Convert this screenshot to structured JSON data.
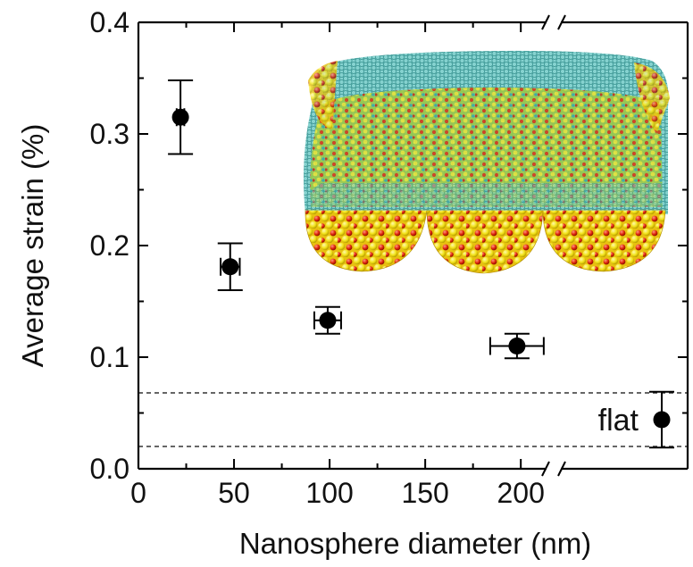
{
  "chart_data": {
    "type": "scatter",
    "xlabel": "Nanosphere diameter (nm)",
    "ylabel": "Average strain (%)",
    "xlim": [
      0,
      220
    ],
    "ylim": [
      0,
      0.4
    ],
    "x_ticks": [
      "0",
      "50",
      "100",
      "150",
      "200"
    ],
    "y_ticks": [
      "0.0",
      "0.1",
      "0.2",
      "0.3",
      "0.4"
    ],
    "axis_break": true,
    "grid": false,
    "points": [
      {
        "x": 22,
        "y": 0.315,
        "y_err": 0.033,
        "x_err": 2
      },
      {
        "x": 48,
        "y": 0.181,
        "y_err": 0.021,
        "x_err": 5
      },
      {
        "x": 99,
        "y": 0.133,
        "y_err": 0.012,
        "x_err": 7
      },
      {
        "x": 198,
        "y": 0.11,
        "y_err": 0.011,
        "x_err": 14
      }
    ],
    "flat_point": {
      "label": "flat",
      "y": 0.044,
      "y_err": 0.025
    },
    "flat_band": [
      0.02,
      0.068
    ],
    "colors": {
      "marker": "#000000",
      "band": "#333333"
    }
  },
  "inset": {
    "description_icon": "molecular-structure-icon",
    "colors": {
      "membrane": "#40b5b2",
      "sphere_top": "#f2e820",
      "sphere_red": "#e0260c",
      "green_surface": "#8bc03a"
    }
  }
}
